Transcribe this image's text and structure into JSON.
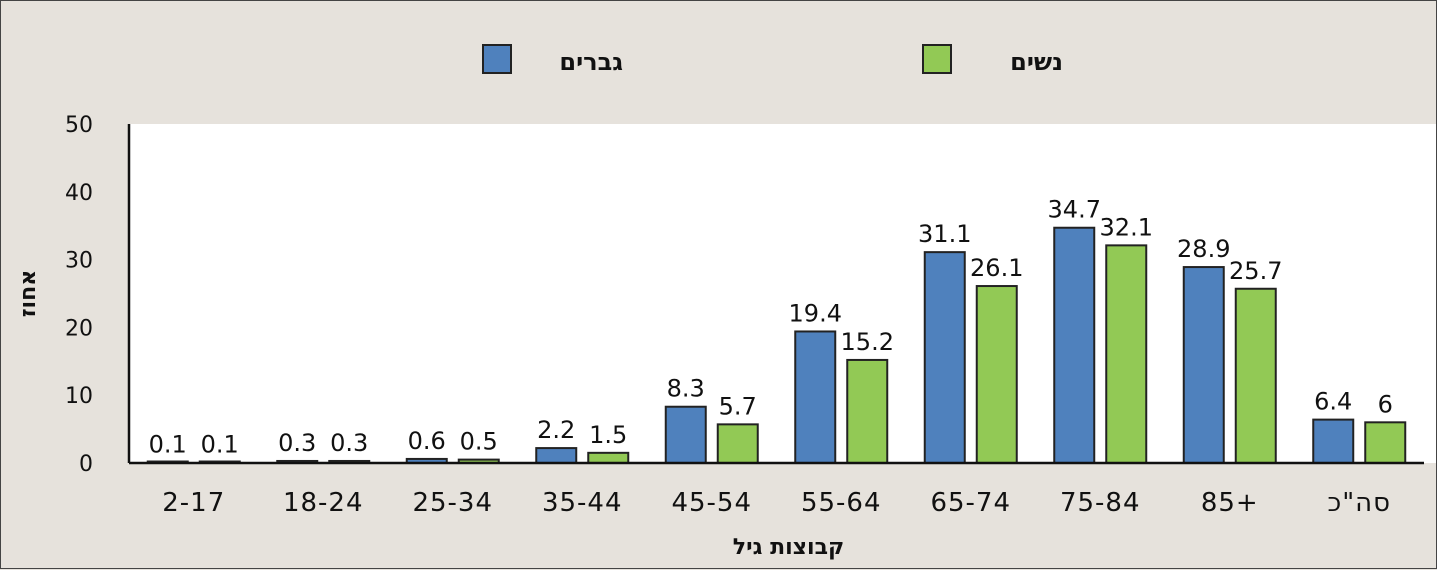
{
  "chart_data": {
    "type": "bar",
    "categories": [
      "2-17",
      "18-24",
      "25-34",
      "35-44",
      "45-54",
      "55-64",
      "65-74",
      "75-84",
      "85+",
      "סה\"כ"
    ],
    "series": [
      {
        "name": "גברים",
        "color": "#4f81bd",
        "values": [
          0.1,
          0.3,
          0.6,
          2.2,
          8.3,
          19.4,
          31.1,
          34.7,
          28.9,
          6.4
        ]
      },
      {
        "name": "נשים",
        "color": "#92c955",
        "values": [
          0.1,
          0.3,
          0.5,
          1.5,
          5.7,
          15.2,
          26.1,
          32.1,
          25.7,
          6
        ]
      }
    ],
    "xlabel": "קבוצות גיל",
    "ylabel": "אחוז",
    "ylim": [
      0,
      50
    ],
    "yticks": [
      "0",
      "10",
      "20",
      "30",
      "40",
      "50"
    ],
    "grid": false,
    "legend_position": "top"
  }
}
